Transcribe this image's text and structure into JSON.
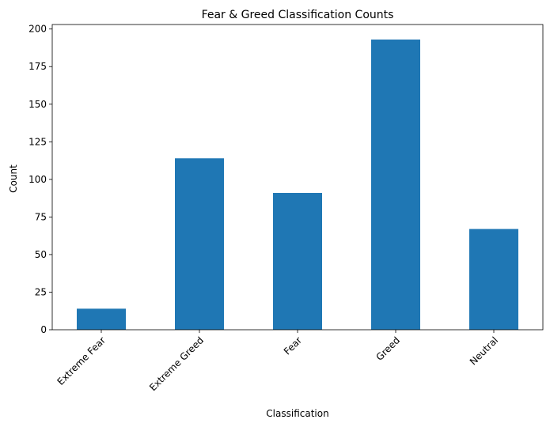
{
  "chart_data": {
    "type": "bar",
    "title": "Fear & Greed Classification Counts",
    "xlabel": "Classification",
    "ylabel": "Count",
    "categories": [
      "Extreme Fear",
      "Extreme Greed",
      "Fear",
      "Greed",
      "Neutral"
    ],
    "values": [
      14,
      114,
      91,
      193,
      67
    ],
    "ylim": [
      0,
      203
    ],
    "yticks": [
      0,
      25,
      50,
      75,
      100,
      125,
      150,
      175,
      200
    ],
    "grid": false,
    "bar_color": "#1f77b4",
    "x_tick_rotation_deg": 45
  }
}
